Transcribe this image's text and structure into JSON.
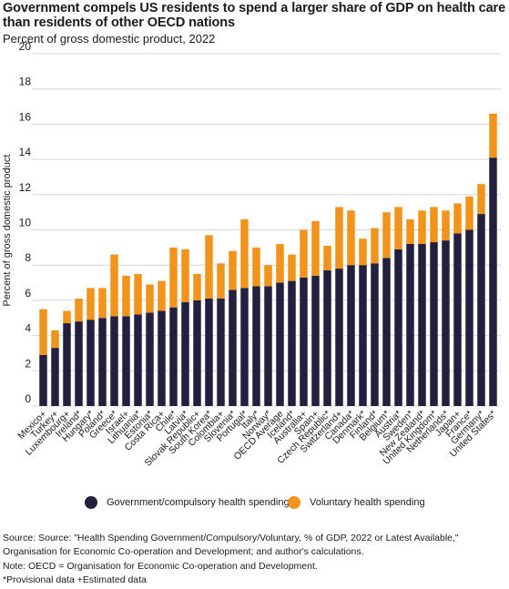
{
  "header": {
    "title": "Government compels US residents to spend a larger share of GDP on health care than residents of other OECD nations",
    "subtitle": "Percent of gross domestic product, 2022"
  },
  "colors": {
    "government": "#231f3e",
    "voluntary": "#f2931c",
    "grid": "#d6d6d6",
    "text": "#1a1a1a"
  },
  "chart_data": {
    "type": "bar",
    "stacked": true,
    "ylabel": "Percent of gross domestic product",
    "ylim": [
      0,
      20
    ],
    "yticks": [
      0,
      2,
      4,
      6,
      8,
      10,
      12,
      14,
      16,
      18,
      20
    ],
    "grid": true,
    "legend_position": "bottom",
    "categories": [
      "Mexico+",
      "Turkey+",
      "Luxembourg+",
      "Ireland*",
      "Hungary*",
      "Poland*",
      "Greece*",
      "Israel+",
      "Lithuania*",
      "Estonia*",
      "Costa Rica+",
      "Chile*",
      "Latvia*",
      "Slovak Republic+",
      "South Korea*",
      "Colombia+",
      "Slovenia*",
      "Portugal*",
      "Italy*",
      "Norway*",
      "OECD Average",
      "Iceland*",
      "Australia+",
      "Spain+",
      "Czech Republic*",
      "Switzerland+",
      "Canada*",
      "Denmark*",
      "Finland*",
      "Belgium*",
      "Austria*",
      "Sweden*",
      "New Zealand*",
      "United Kingdom*",
      "Netherlands*",
      "Japan+",
      "France*",
      "Germany*",
      "United States*"
    ],
    "series": [
      {
        "name": "Government/compulsory health spending",
        "values": [
          2.9,
          3.3,
          4.7,
          4.8,
          4.9,
          5.0,
          5.1,
          5.1,
          5.2,
          5.3,
          5.4,
          5.6,
          5.9,
          6.0,
          6.1,
          6.1,
          6.6,
          6.7,
          6.8,
          6.8,
          7.0,
          7.1,
          7.3,
          7.4,
          7.7,
          7.8,
          8.0,
          8.0,
          8.1,
          8.4,
          8.9,
          9.2,
          9.2,
          9.3,
          9.4,
          9.8,
          10.0,
          10.9,
          14.1
        ]
      },
      {
        "name": "Voluntary health spending",
        "values": [
          2.6,
          1.0,
          0.7,
          1.3,
          1.8,
          1.7,
          3.5,
          2.3,
          2.3,
          1.6,
          1.7,
          3.4,
          3.0,
          1.5,
          3.6,
          2.0,
          2.2,
          3.9,
          2.2,
          1.2,
          2.2,
          1.5,
          2.7,
          3.1,
          1.4,
          3.5,
          3.1,
          1.5,
          2.0,
          2.6,
          2.4,
          1.4,
          1.9,
          2.0,
          1.7,
          1.7,
          1.9,
          1.7,
          2.5
        ]
      }
    ]
  },
  "source": {
    "line1": "Source: Source: \"Health Spending Government/Compulsory/Voluntary, % of GDP, 2022 or Latest Available,\"",
    "line2": "Organisation for Economic Co-operation and Development; and author's calculations.",
    "line3": "Note: OECD = Organisation for Economic Co-operation and Development.",
    "line4": "*Provisional data +Estimated data"
  }
}
